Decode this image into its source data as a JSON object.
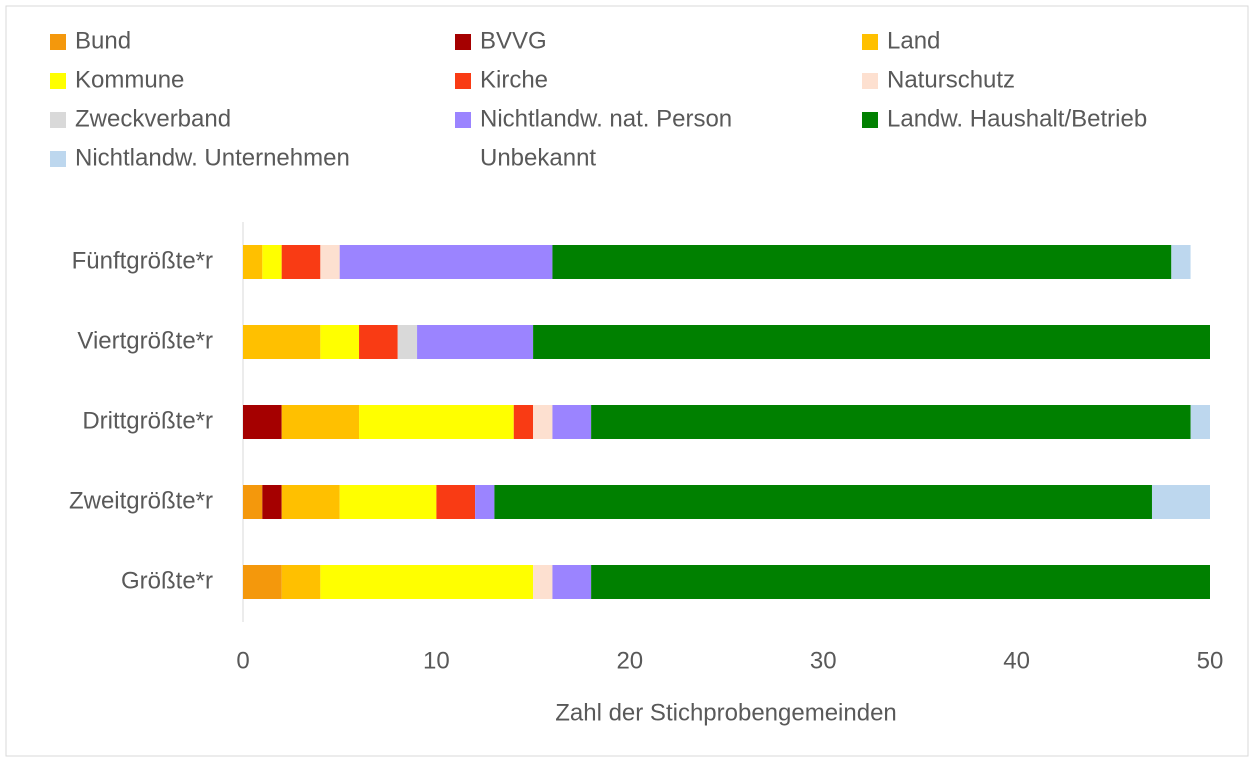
{
  "chart_data": {
    "type": "stacked-bar-horizontal",
    "xlabel": "Zahl der Stichprobengemeinden",
    "categories": [
      "Größte*r",
      "Zweitgrößte*r",
      "Drittgrößte*r",
      "Viertgrößte*r",
      "Fünftgrößte*r"
    ],
    "xlim": [
      0,
      50
    ],
    "xticks": [
      0,
      10,
      20,
      30,
      40,
      50
    ],
    "grid": false,
    "series": [
      {
        "name": "Bund",
        "color": "#f4980c",
        "values": [
          2,
          1,
          0,
          0,
          0
        ]
      },
      {
        "name": "BVVG",
        "color": "#a50000",
        "values": [
          0,
          1,
          2,
          0,
          0
        ]
      },
      {
        "name": "Land",
        "color": "#ffc000",
        "values": [
          2,
          3,
          4,
          4,
          1
        ]
      },
      {
        "name": "Kommune",
        "color": "#ffff00",
        "values": [
          11,
          5,
          8,
          2,
          1
        ]
      },
      {
        "name": "Kirche",
        "color": "#f93b14",
        "values": [
          0,
          2,
          1,
          2,
          2
        ]
      },
      {
        "name": "Naturschutz",
        "color": "#fde0d0",
        "values": [
          1,
          0,
          1,
          0,
          1
        ]
      },
      {
        "name": "Zweckverband",
        "color": "#d9d9d9",
        "values": [
          0,
          0,
          0,
          1,
          0
        ]
      },
      {
        "name": "Nichtlandw. nat. Person",
        "color": "#9b84ff",
        "values": [
          2,
          1,
          2,
          6,
          11
        ]
      },
      {
        "name": "Landw. Haushalt/Betrieb",
        "color": "#008000",
        "values": [
          32,
          34,
          31,
          35,
          32
        ]
      },
      {
        "name": "Nichtlandw. Unternehmen",
        "color": "#bdd7ee",
        "values": [
          0,
          3,
          1,
          0,
          1
        ]
      },
      {
        "name": "Unbekannt",
        "color": "#ffffff",
        "values": [
          0,
          0,
          0,
          0,
          1
        ]
      }
    ]
  }
}
